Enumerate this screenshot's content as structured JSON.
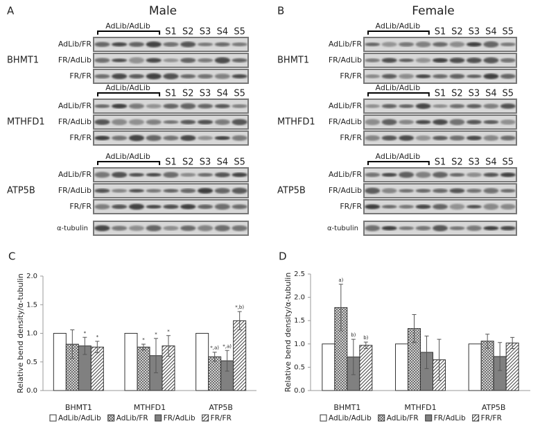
{
  "blots": [
    {
      "panel": "A",
      "title": "Male",
      "header": "AdLib/AdLib",
      "lanes": [
        "S1",
        "S2",
        "S3",
        "S4",
        "S5"
      ],
      "groups": [
        {
          "gene": "BHMT1",
          "rows": [
            "AdLib/FR",
            "FR/AdLib",
            "FR/FR"
          ]
        },
        {
          "gene": "MTHFD1",
          "rows": [
            "AdLib/FR",
            "FR/AdLib",
            "FR/FR"
          ]
        },
        {
          "gene": "ATP5B",
          "rows": [
            "AdLib/FR",
            "FR/AdLib",
            "FR/FR"
          ]
        }
      ],
      "control": "α-tubulin"
    },
    {
      "panel": "B",
      "title": "Female",
      "header": "AdLib/AdLib",
      "lanes": [
        "S1",
        "S2",
        "S3",
        "S4",
        "S5"
      ],
      "groups": [
        {
          "gene": "BHMT1",
          "rows": [
            "AdLib/FR",
            "FR/AdLib",
            "FR/FR"
          ]
        },
        {
          "gene": "MTHFD1",
          "rows": [
            "AdLib/FR",
            "FR/AdLib",
            "FR/FR"
          ]
        },
        {
          "gene": "ATP5B",
          "rows": [
            "AdLib/FR",
            "FR/AdLib",
            "FR/FR"
          ]
        }
      ],
      "control": "α-tubulin"
    }
  ],
  "chart_data": [
    {
      "type": "bar",
      "panel": "C",
      "y_label": "Relative bend density/α-tubulin",
      "categories": [
        "BHMT1",
        "MTHFD1",
        "ATP5B"
      ],
      "ylim": [
        0,
        2
      ],
      "yticks": [
        {
          "value": 0,
          "label": "0.0"
        },
        {
          "value": 0.5,
          "label": "0.5"
        },
        {
          "value": 1,
          "label": "1.0"
        },
        {
          "value": 1.5,
          "label": "1.5"
        },
        {
          "value": 2,
          "label": "2.0"
        }
      ],
      "series": [
        {
          "name": "AdLib/AdLib",
          "color": "#ffffff",
          "pattern": null,
          "values": [
            1,
            1,
            1
          ],
          "errors": [
            0,
            0,
            0
          ],
          "annotations": [
            null,
            null,
            null
          ]
        },
        {
          "name": "AdLib/FR",
          "color": "#bbbbbb",
          "pattern": "crosshatch",
          "values": [
            0.81,
            0.76,
            0.59
          ],
          "errors": [
            0.25,
            0.05,
            0.08
          ],
          "annotations": [
            null,
            "*",
            "*,a)"
          ]
        },
        {
          "name": "FR/AdLib",
          "color": "#808080",
          "pattern": null,
          "values": [
            0.78,
            0.61,
            0.52
          ],
          "errors": [
            0.15,
            0.3,
            0.18
          ],
          "annotations": [
            "*",
            "*",
            "*,a)"
          ]
        },
        {
          "name": "FR/FR",
          "color": "#ffffff",
          "pattern": "diagonal",
          "values": [
            0.76,
            0.78,
            1.22
          ],
          "errors": [
            0.1,
            0.18,
            0.16
          ],
          "annotations": [
            "*",
            "*",
            "*,b)"
          ]
        }
      ]
    },
    {
      "type": "bar",
      "panel": "D",
      "y_label": "Relative bend density/α-tubulin",
      "categories": [
        "BHMT1",
        "MTHFD1",
        "ATP5B"
      ],
      "ylim": [
        0,
        2.5
      ],
      "yticks": [
        {
          "value": 0,
          "label": "0.0"
        },
        {
          "value": 0.5,
          "label": "0.5"
        },
        {
          "value": 1,
          "label": "1.0"
        },
        {
          "value": 1.5,
          "label": "1.5"
        },
        {
          "value": 2,
          "label": "2.0"
        },
        {
          "value": 2.5,
          "label": "2.5"
        }
      ],
      "series": [
        {
          "name": "AdLib/AdLib",
          "color": "#ffffff",
          "pattern": null,
          "values": [
            1,
            1,
            1
          ],
          "errors": [
            0,
            0,
            0
          ],
          "annotations": [
            null,
            null,
            null
          ]
        },
        {
          "name": "AdLib/FR",
          "color": "#bbbbbb",
          "pattern": "crosshatch",
          "values": [
            1.78,
            1.33,
            1.06
          ],
          "errors": [
            0.5,
            0.3,
            0.15
          ],
          "annotations": [
            "a)",
            null,
            null
          ]
        },
        {
          "name": "FR/AdLib",
          "color": "#808080",
          "pattern": null,
          "values": [
            0.72,
            0.82,
            0.73
          ],
          "errors": [
            0.38,
            0.35,
            0.3
          ],
          "annotations": [
            "b)",
            null,
            null
          ]
        },
        {
          "name": "FR/FR",
          "color": "#ffffff",
          "pattern": "diagonal",
          "values": [
            0.97,
            0.66,
            1.02
          ],
          "errors": [
            0.07,
            0.44,
            0.12
          ],
          "annotations": [
            "b)",
            null,
            null
          ]
        }
      ]
    }
  ]
}
